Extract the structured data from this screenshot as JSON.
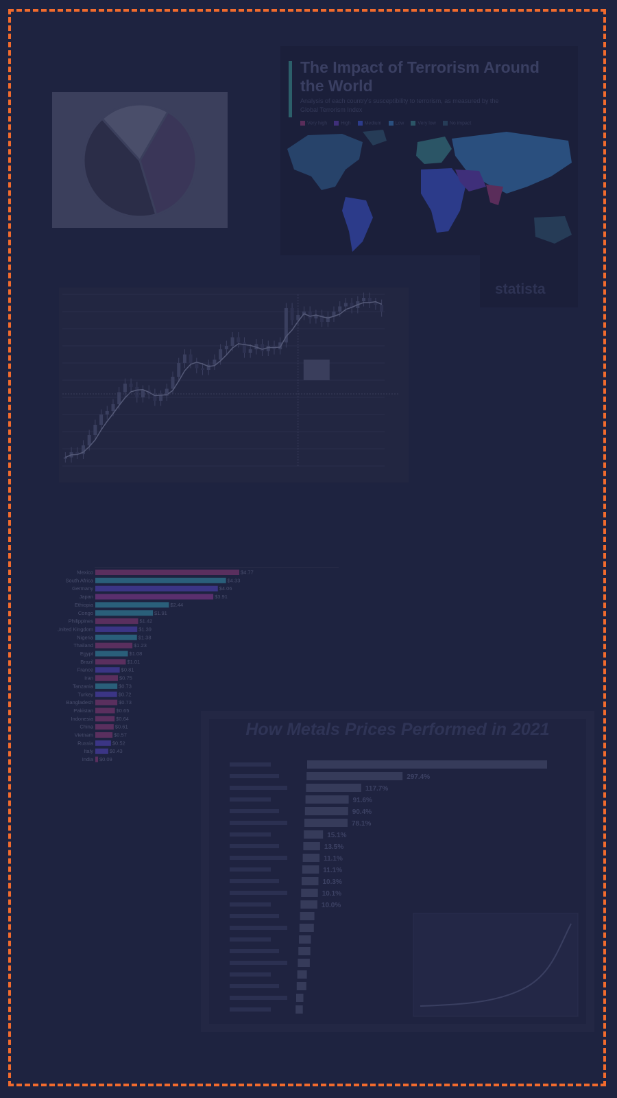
{
  "chart_data": [
    {
      "type": "pie",
      "values": [
        37,
        43,
        20
      ],
      "colors": [
        "#3a3658",
        "#2b2d48",
        "#4a4e6a"
      ]
    },
    {
      "type": "map",
      "title": "The Impact of Terrorism Around the World",
      "subtitle": "Analysis of each country's susceptibility to terrorism, as measured by the Global Terrorism Index",
      "legend": [
        "Very high",
        "High",
        "Medium",
        "Low",
        "Very low",
        "No impact"
      ],
      "legend_colors": [
        "#5a2d5a",
        "#3f2f7a",
        "#2c3b8a",
        "#2a4f7e",
        "#2b5566",
        "#263c57"
      ],
      "source": "statista"
    },
    {
      "type": "candlestick",
      "overlay": "moving average",
      "ylim": [
        0,
        100
      ],
      "series": [
        {
          "name": "close",
          "values": [
            5,
            8,
            7,
            12,
            18,
            24,
            30,
            32,
            36,
            43,
            48,
            46,
            40,
            44,
            42,
            38,
            41,
            45,
            52,
            60,
            65,
            60,
            57,
            56,
            59,
            62,
            68,
            70,
            75,
            72,
            66,
            68,
            71,
            67,
            70,
            68,
            72,
            92,
            85,
            88,
            90,
            86,
            88,
            84,
            87,
            90,
            93,
            95,
            92,
            96,
            98,
            95,
            94,
            90
          ]
        }
      ],
      "crosshair_x": 39
    },
    {
      "type": "bar",
      "orientation": "horizontal",
      "categories": [
        "Mexico",
        "South Africa",
        "Germany",
        "Japan",
        "Ethiopia",
        "Congo",
        "Philippines",
        "United Kingdom",
        "Nigeria",
        "Thailand",
        "Egypt",
        "Brazil",
        "France",
        "Iran",
        "Tanzania",
        "Turkey",
        "Bangladesh",
        "Pakistan",
        "Indonesia",
        "China",
        "Vietnam",
        "Russia",
        "Italy",
        "India"
      ],
      "values": [
        4.77,
        4.33,
        4.06,
        3.91,
        2.44,
        1.91,
        1.42,
        1.39,
        1.38,
        1.23,
        1.08,
        1.01,
        0.81,
        0.75,
        0.73,
        0.72,
        0.73,
        0.65,
        0.64,
        0.61,
        0.57,
        0.52,
        0.43,
        0.09
      ],
      "labels": [
        "$4.77",
        "$4.33",
        "$4.06",
        "$3.91",
        "$2.44",
        "$1.91",
        "$1.42",
        "$1.39",
        "$1.38",
        "$1.23",
        "$1.08",
        "$1.01",
        "$0.81",
        "$0.75",
        "$0.73",
        "$0.72",
        "$0.73",
        "$0.65",
        "$0.64",
        "$0.61",
        "$0.57",
        "$0.52",
        "$0.43",
        "$0.09"
      ],
      "colors": [
        "#5a2f5e",
        "#2a5f7a",
        "#3b3585",
        "#5a2f6e",
        "#2a5f7a",
        "#2a5f7a",
        "#5a2f5e",
        "#3b3585",
        "#2a5f7a",
        "#5a2f5e",
        "#2a5f7a",
        "#5a2f5e",
        "#3b3585",
        "#5a2f5e",
        "#2a5f7a",
        "#3b3585",
        "#5a2f5e",
        "#5a2f5e",
        "#5a2f5e",
        "#5a2f5e",
        "#5a2f5e",
        "#3b3585",
        "#3b3585",
        "#5a2f5e"
      ]
    },
    {
      "type": "bar",
      "orientation": "horizontal",
      "title": "How Metals Prices Performed in 2021",
      "values": [
        100,
        40,
        23,
        18,
        18,
        18,
        8,
        7,
        7,
        7,
        7,
        7,
        7,
        6,
        6,
        5,
        5,
        5,
        4,
        4,
        3,
        3
      ],
      "labels": [
        "",
        "297.4%",
        "117.7%",
        "91.6%",
        "90.4%",
        "78.1%",
        "15.1%",
        "13.5%",
        "11.1%",
        "11.1%",
        "10.3%",
        "10.1%",
        "10.0%",
        "",
        "",
        "",
        "",
        "",
        "",
        "",
        "",
        ""
      ]
    }
  ]
}
